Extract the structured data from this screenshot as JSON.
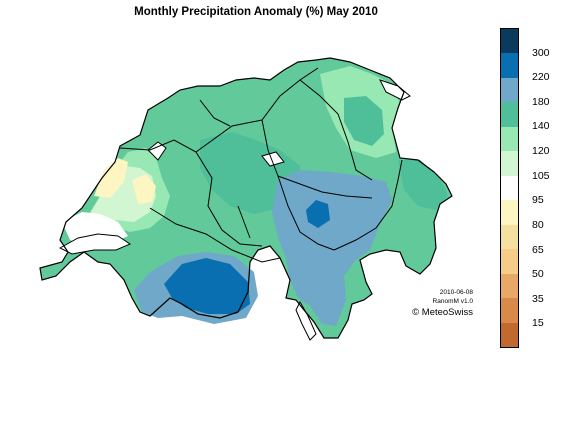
{
  "map": {
    "title": "Monthly Precipitation Anomaly (%) May 2010",
    "legend": {
      "labels": [
        "300",
        "220",
        "180",
        "140",
        "120",
        "105",
        "95",
        "80",
        "65",
        "50",
        "35",
        "15"
      ],
      "colors": [
        "#0a3a5c",
        "#0a6fb0",
        "#6fa8c8",
        "#4fbf9a",
        "#98e8b4",
        "#d2f5d2",
        "#ffffff",
        "#fdf5c2",
        "#f5e0a0",
        "#f5cc88",
        "#e8a868",
        "#d98a48",
        "#c06a30"
      ]
    },
    "region_colors": {
      "base": "#62c99a",
      "low": "#98e8b4",
      "very_low": "#d2f5d2",
      "neutral": "#ffffff",
      "dry": "#fdf5c2",
      "high": "#4fbf9a",
      "very_high": "#6fa8c8",
      "extreme": "#0a6fb0"
    },
    "credits": {
      "date": "2010-06-08",
      "version": "RanomM v1.0",
      "brand": "© MeteoSwiss"
    }
  }
}
